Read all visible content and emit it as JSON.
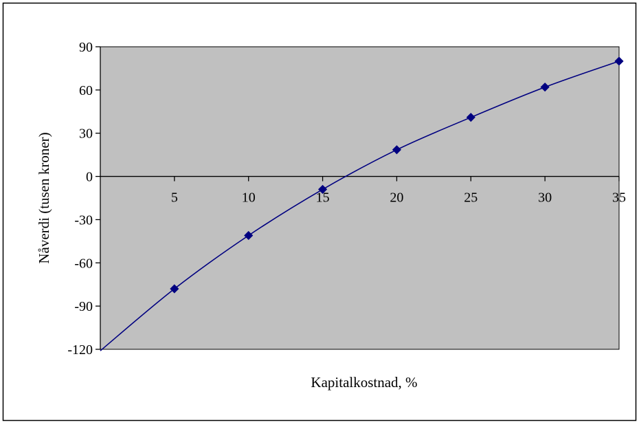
{
  "chart_data": {
    "type": "line",
    "title": "",
    "xlabel": "Kapitalkostnad, %",
    "ylabel": "Nåverdi (tusen kroner)",
    "xlim": [
      0,
      35
    ],
    "ylim": [
      -120,
      90
    ],
    "x_ticks": [
      "5",
      "10",
      "15",
      "20",
      "25",
      "30",
      "35"
    ],
    "y_ticks": [
      "90",
      "60",
      "30",
      "0",
      "-30",
      "-60",
      "-90",
      "-120"
    ],
    "grid": false,
    "legend": "none",
    "series": [
      {
        "x": [
          5,
          10,
          15,
          20,
          25,
          30,
          35
        ],
        "y": [
          -78,
          -41,
          -9,
          18.5,
          41,
          62,
          80
        ]
      }
    ],
    "line_extends_to": {
      "x": 0,
      "y": -121
    },
    "colors": {
      "plot_background": "#c0c0c0",
      "line": "#000080",
      "marker": "#000080"
    },
    "marker": "diamond"
  }
}
